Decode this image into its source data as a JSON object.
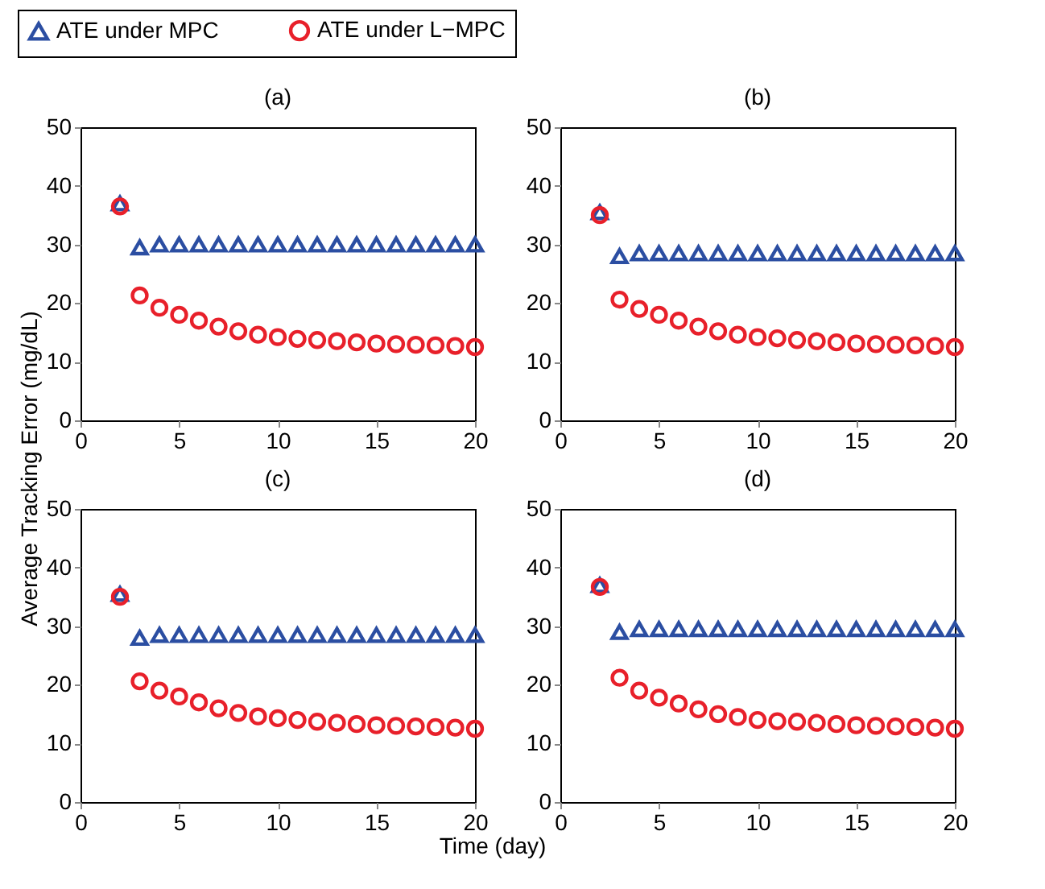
{
  "chart_data": [
    {
      "type": "scatter",
      "title": "(a)",
      "ylabel": "Average Tracking Error (mg/dL)",
      "x": [
        2,
        3,
        4,
        5,
        6,
        7,
        8,
        9,
        10,
        11,
        12,
        13,
        14,
        15,
        16,
        17,
        18,
        19,
        20
      ],
      "xlim": [
        0,
        20
      ],
      "xticks": [
        0,
        5,
        10,
        15,
        20
      ],
      "ylim": [
        0,
        50
      ],
      "yticks": [
        0,
        10,
        20,
        30,
        40,
        50
      ],
      "grid": false,
      "legend": "top",
      "series": [
        {
          "name": "ATE under MPC",
          "color": "#2b4ea2",
          "marker": "triangle",
          "values": [
            37,
            29.5,
            30,
            30,
            30,
            30,
            30,
            30,
            30,
            30,
            30,
            30,
            30,
            30,
            30,
            30,
            30,
            30,
            30
          ]
        },
        {
          "name": "ATE under L−MPC",
          "color": "#e8202a",
          "marker": "circle",
          "values": [
            36.5,
            21.3,
            19.2,
            18,
            17,
            16,
            15.2,
            14.6,
            14.2,
            13.9,
            13.7,
            13.5,
            13.3,
            13.1,
            13,
            12.9,
            12.8,
            12.7,
            12.5
          ]
        }
      ]
    },
    {
      "type": "scatter",
      "title": "(b)",
      "x": [
        2,
        3,
        4,
        5,
        6,
        7,
        8,
        9,
        10,
        11,
        12,
        13,
        14,
        15,
        16,
        17,
        18,
        19,
        20
      ],
      "xlim": [
        0,
        20
      ],
      "xticks": [
        0,
        5,
        10,
        15,
        20
      ],
      "ylim": [
        0,
        50
      ],
      "yticks": [
        0,
        10,
        20,
        30,
        40,
        50
      ],
      "grid": false,
      "series": [
        {
          "color": "#2b4ea2",
          "marker": "triangle",
          "values": [
            35.5,
            28,
            28.5,
            28.5,
            28.5,
            28.5,
            28.5,
            28.5,
            28.5,
            28.5,
            28.5,
            28.5,
            28.5,
            28.5,
            28.5,
            28.5,
            28.5,
            28.5,
            28.5
          ]
        },
        {
          "color": "#e8202a",
          "marker": "circle",
          "values": [
            35,
            20.6,
            19,
            18,
            17,
            16,
            15.2,
            14.6,
            14.2,
            14,
            13.7,
            13.5,
            13.3,
            13.1,
            13,
            12.9,
            12.8,
            12.7,
            12.5
          ]
        }
      ]
    },
    {
      "type": "scatter",
      "title": "(c)",
      "xlabel": "Time (day)",
      "x": [
        2,
        3,
        4,
        5,
        6,
        7,
        8,
        9,
        10,
        11,
        12,
        13,
        14,
        15,
        16,
        17,
        18,
        19,
        20
      ],
      "xlim": [
        0,
        20
      ],
      "xticks": [
        0,
        5,
        10,
        15,
        20
      ],
      "ylim": [
        0,
        50
      ],
      "yticks": [
        0,
        10,
        20,
        30,
        40,
        50
      ],
      "grid": false,
      "series": [
        {
          "color": "#2b4ea2",
          "marker": "triangle",
          "values": [
            35.5,
            28,
            28.5,
            28.5,
            28.5,
            28.5,
            28.5,
            28.5,
            28.5,
            28.5,
            28.5,
            28.5,
            28.5,
            28.5,
            28.5,
            28.5,
            28.5,
            28.5,
            28.5
          ]
        },
        {
          "color": "#e8202a",
          "marker": "circle",
          "values": [
            35,
            20.6,
            19,
            18,
            17,
            16,
            15.2,
            14.6,
            14.3,
            14,
            13.7,
            13.5,
            13.3,
            13.1,
            13,
            12.9,
            12.8,
            12.7,
            12.5
          ]
        }
      ]
    },
    {
      "type": "scatter",
      "title": "(d)",
      "x": [
        2,
        3,
        4,
        5,
        6,
        7,
        8,
        9,
        10,
        11,
        12,
        13,
        14,
        15,
        16,
        17,
        18,
        19,
        20
      ],
      "xlim": [
        0,
        20
      ],
      "xticks": [
        0,
        5,
        10,
        15,
        20
      ],
      "ylim": [
        0,
        50
      ],
      "yticks": [
        0,
        10,
        20,
        30,
        40,
        50
      ],
      "grid": false,
      "series": [
        {
          "color": "#2b4ea2",
          "marker": "triangle",
          "values": [
            37,
            29,
            29.5,
            29.5,
            29.5,
            29.5,
            29.5,
            29.5,
            29.5,
            29.5,
            29.5,
            29.5,
            29.5,
            29.5,
            29.5,
            29.5,
            29.5,
            29.5,
            29.5
          ]
        },
        {
          "color": "#e8202a",
          "marker": "circle",
          "values": [
            36.7,
            21.2,
            19,
            17.8,
            16.8,
            15.8,
            15,
            14.5,
            14,
            13.8,
            13.7,
            13.5,
            13.3,
            13.1,
            13,
            12.9,
            12.8,
            12.7,
            12.5
          ]
        }
      ]
    }
  ]
}
